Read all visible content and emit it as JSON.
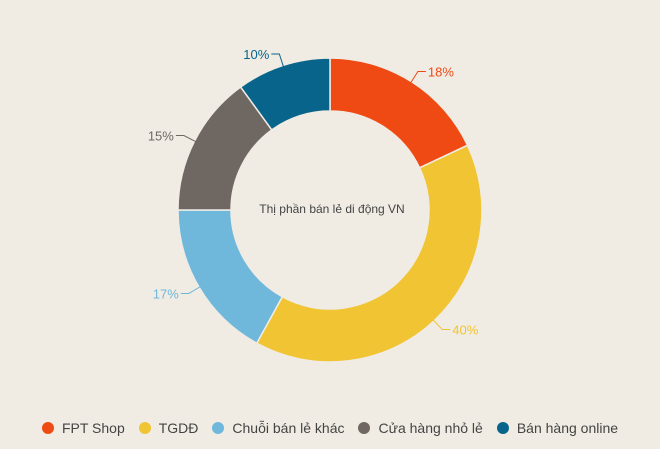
{
  "chart_data": {
    "type": "pie",
    "title": "Thị phần bán lẻ di động VN",
    "slices": [
      {
        "name": "FPT Shop",
        "value": 18,
        "label": "18%",
        "color": "#f04a14"
      },
      {
        "name": "TGDĐ",
        "value": 40,
        "label": "40%",
        "color": "#f0c433"
      },
      {
        "name": "Chuỗi bán lẻ khác",
        "value": 17,
        "label": "17%",
        "color": "#6fb8dc"
      },
      {
        "name": "Cửa hàng nhỏ lẻ",
        "value": 15,
        "label": "15%",
        "color": "#6e6762"
      },
      {
        "name": "Bán hàng online",
        "value": 10,
        "label": "10%",
        "color": "#08648b"
      }
    ],
    "legend_position": "bottom"
  }
}
